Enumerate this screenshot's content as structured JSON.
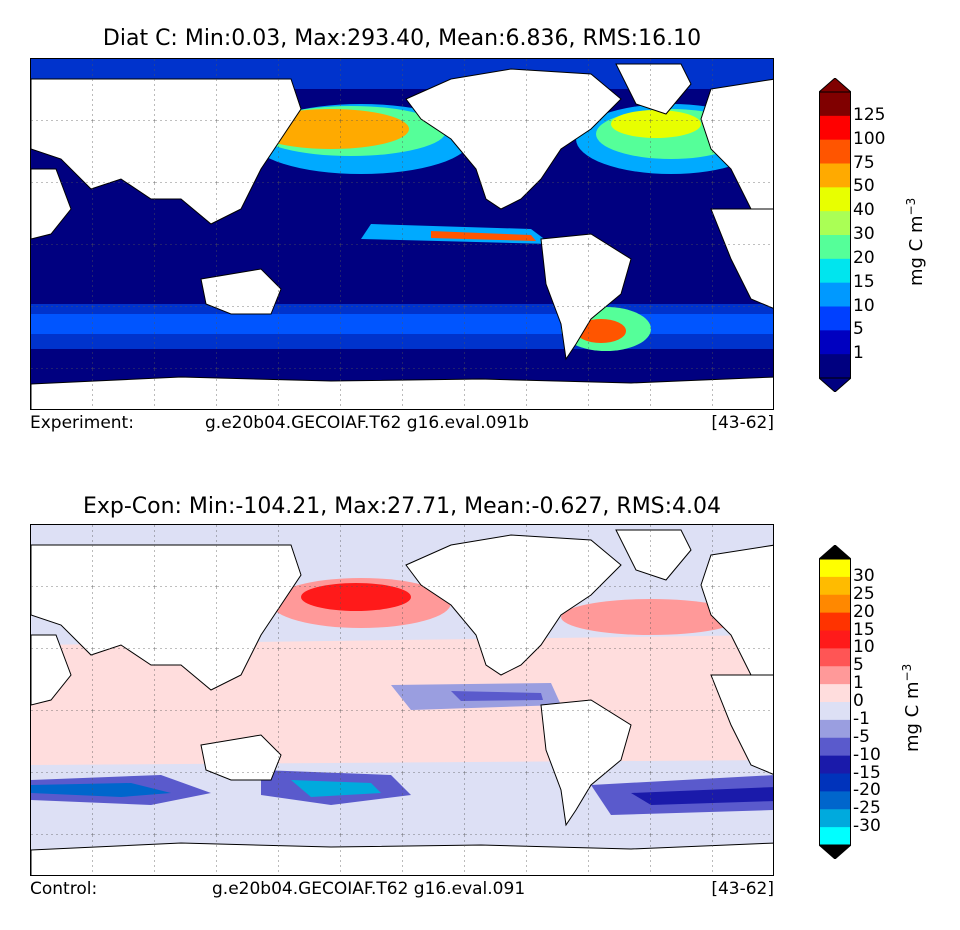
{
  "top": {
    "title": "Diat C: Min:0.03, Max:293.40, Mean:6.836, RMS:16.10",
    "footer_left": "Experiment:",
    "footer_center": "g.e20b04.GECOIAF.T62 g16.eval.091b",
    "footer_right": "[43-62]",
    "colorbar_label": "mg C m",
    "colorbar_exp": "−3",
    "colorbar_ticks": [
      "125",
      "100",
      "75",
      "50",
      "40",
      "30",
      "20",
      "15",
      "10",
      "5",
      "1"
    ],
    "colorbar_colors": [
      "#800000",
      "#ff0000",
      "#ff5500",
      "#ffaa00",
      "#e8ff00",
      "#aaff55",
      "#55ff99",
      "#00e5ee",
      "#0099ff",
      "#0040ff",
      "#0000c0",
      "#000080"
    ],
    "over_color": "#800000",
    "under_color": "#000080"
  },
  "bottom": {
    "title": "Exp-Con: Min:-104.21, Max:27.71, Mean:-0.627, RMS:4.04",
    "footer_left": "Control:",
    "footer_center": "g.e20b04.GECOIAF.T62 g16.eval.091",
    "footer_right": "[43-62]",
    "colorbar_label": "mg C m",
    "colorbar_exp": "−3",
    "colorbar_ticks": [
      "30",
      "25",
      "20",
      "15",
      "10",
      "5",
      "1",
      "0",
      "-1",
      "-5",
      "-10",
      "-15",
      "-20",
      "-25",
      "-30"
    ],
    "colorbar_colors": [
      "#ffff00",
      "#ffbb00",
      "#ff8800",
      "#ff3300",
      "#ff1a1a",
      "#ff5555",
      "#ff9999",
      "#ffdddd",
      "#dde0f5",
      "#9a9ee0",
      "#5a5acc",
      "#1a1aaa",
      "#0033bb",
      "#0066cc",
      "#00aadd",
      "#00ffff"
    ],
    "over_color": "#000000",
    "under_color": "#000000"
  }
}
